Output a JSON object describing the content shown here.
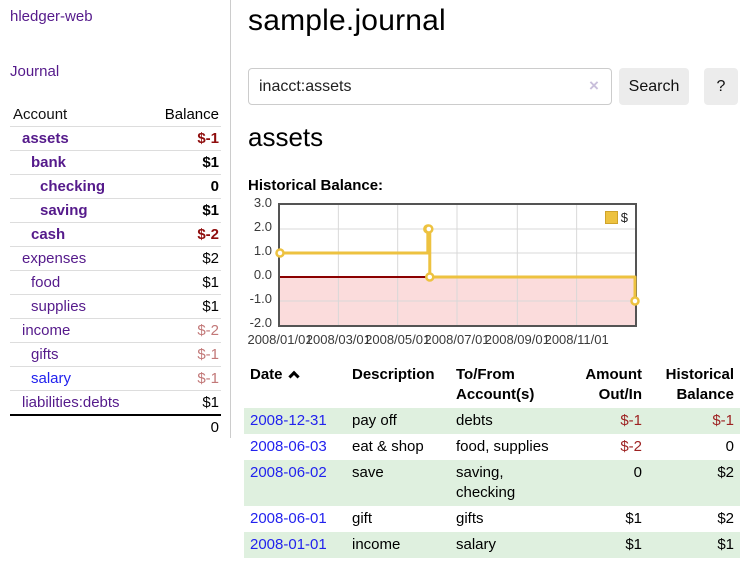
{
  "colors": {
    "link_purple": "#551a8b",
    "link_blue": "#2222ee",
    "negative_bold": "#8f0d0d",
    "negative": "#9d2222",
    "negative_dim": "#c27878",
    "row_shade_green": "#dff0df",
    "series_yellow": "#edc240",
    "negative_region_pink": "#fbdcdc",
    "zero_line_red": "#8b0000",
    "plot_border": "#545454",
    "grid": "#d8d8d8"
  },
  "sidebar": {
    "brand": "hledger-web",
    "journal_link": "Journal",
    "table": {
      "account_header": "Account",
      "balance_header": "Balance",
      "accounts": [
        {
          "name": "assets",
          "level": 1,
          "balance": "$-1",
          "bold": true,
          "link": "purple",
          "balance_class": "neg-bold"
        },
        {
          "name": "bank",
          "level": 2,
          "balance": "$1",
          "bold": true,
          "link": "purple",
          "balance_class": "bold"
        },
        {
          "name": "checking",
          "level": 3,
          "balance": "0",
          "bold": true,
          "link": "purple",
          "balance_class": "bold"
        },
        {
          "name": "saving",
          "level": 3,
          "balance": "$1",
          "bold": true,
          "link": "purple",
          "balance_class": "bold"
        },
        {
          "name": "cash",
          "level": 2,
          "balance": "$-2",
          "bold": true,
          "link": "purple",
          "balance_class": "neg-bold"
        },
        {
          "name": "expenses",
          "level": 1,
          "balance": "$2",
          "bold": false,
          "link": "purple",
          "balance_class": ""
        },
        {
          "name": "food",
          "level": 2,
          "balance": "$1",
          "bold": false,
          "link": "purple",
          "balance_class": ""
        },
        {
          "name": "supplies",
          "level": 2,
          "balance": "$1",
          "bold": false,
          "link": "purple",
          "balance_class": ""
        },
        {
          "name": "income",
          "level": 1,
          "balance": "$-2",
          "bold": false,
          "link": "purple",
          "balance_class": "neg-dim"
        },
        {
          "name": "gifts",
          "level": 2,
          "balance": "$-1",
          "bold": false,
          "link": "purple",
          "balance_class": "neg-dim"
        },
        {
          "name": "salary",
          "level": 2,
          "balance": "$-1",
          "bold": false,
          "link": "blue",
          "balance_class": "neg-dim"
        },
        {
          "name": "liabilities:debts",
          "level": 1,
          "balance": "$1",
          "bold": false,
          "link": "purple",
          "balance_class": ""
        }
      ],
      "total": "0"
    }
  },
  "main": {
    "title": "sample.journal",
    "search": {
      "value": "inacct:assets",
      "clear_icon": "×",
      "button": "Search",
      "help_button": "?"
    },
    "account_heading": "assets",
    "chart_label": "Historical Balance:"
  },
  "chart_data": {
    "type": "line",
    "step": true,
    "title": "Historical Balance",
    "xlabel": "",
    "ylabel": "",
    "xlim": [
      0,
      365
    ],
    "ylim": [
      -2,
      3
    ],
    "grid": true,
    "legend": {
      "position": "top-right",
      "label": "$"
    },
    "series": [
      {
        "name": "$",
        "color": "#edc240",
        "points": [
          {
            "date": "2008-01-01",
            "x_days": 0,
            "y": 1
          },
          {
            "date": "2008-06-01",
            "x_days": 152,
            "y": 2
          },
          {
            "date": "2008-06-02",
            "x_days": 153,
            "y": 2
          },
          {
            "date": "2008-06-03",
            "x_days": 154,
            "y": 0
          },
          {
            "date": "2008-12-31",
            "x_days": 365,
            "y": -1
          }
        ]
      }
    ],
    "x_ticks": [
      {
        "pos": 0,
        "label": "2008/01/01"
      },
      {
        "pos": 60,
        "label": "2008/03/01"
      },
      {
        "pos": 121,
        "label": "2008/05/01"
      },
      {
        "pos": 182,
        "label": "2008/07/01"
      },
      {
        "pos": 244,
        "label": "2008/09/01"
      },
      {
        "pos": 305,
        "label": "2008/11/01"
      }
    ],
    "y_ticks": [
      {
        "pos": 3,
        "label": "3.0"
      },
      {
        "pos": 2,
        "label": "2.0"
      },
      {
        "pos": 1,
        "label": "1.0"
      },
      {
        "pos": 0,
        "label": "0.0"
      },
      {
        "pos": -1,
        "label": "-1.0"
      },
      {
        "pos": -2,
        "label": "-2.0"
      }
    ]
  },
  "register": {
    "headers": [
      {
        "lines": [
          "Date"
        ],
        "align": "left",
        "sort": "asc"
      },
      {
        "lines": [
          "Description"
        ],
        "align": "left"
      },
      {
        "lines": [
          "To/From",
          "Account(s)"
        ],
        "align": "left"
      },
      {
        "lines": [
          "Amount",
          "Out/In"
        ],
        "align": "right"
      },
      {
        "lines": [
          "Historical",
          "Balance"
        ],
        "align": "right"
      }
    ],
    "rows": [
      {
        "date": "2008-12-31",
        "description": "pay off",
        "accounts_lines": [
          "debts"
        ],
        "amount": "$-1",
        "amount_negative": true,
        "balance": "$-1",
        "balance_negative": true,
        "shaded": true
      },
      {
        "date": "2008-06-03",
        "description": "eat & shop",
        "accounts_lines": [
          "food, supplies"
        ],
        "amount": "$-2",
        "amount_negative": true,
        "balance": "0",
        "balance_negative": false,
        "shaded": false
      },
      {
        "date": "2008-06-02",
        "description": "save",
        "accounts_lines": [
          "saving,",
          "checking"
        ],
        "amount": "0",
        "amount_negative": false,
        "balance": "$2",
        "balance_negative": false,
        "shaded": true
      },
      {
        "date": "2008-06-01",
        "description": "gift",
        "accounts_lines": [
          "gifts"
        ],
        "amount": "$1",
        "amount_negative": false,
        "balance": "$2",
        "balance_negative": false,
        "shaded": false
      },
      {
        "date": "2008-01-01",
        "description": "income",
        "accounts_lines": [
          "salary"
        ],
        "amount": "$1",
        "amount_negative": false,
        "balance": "$1",
        "balance_negative": false,
        "shaded": true
      }
    ]
  }
}
